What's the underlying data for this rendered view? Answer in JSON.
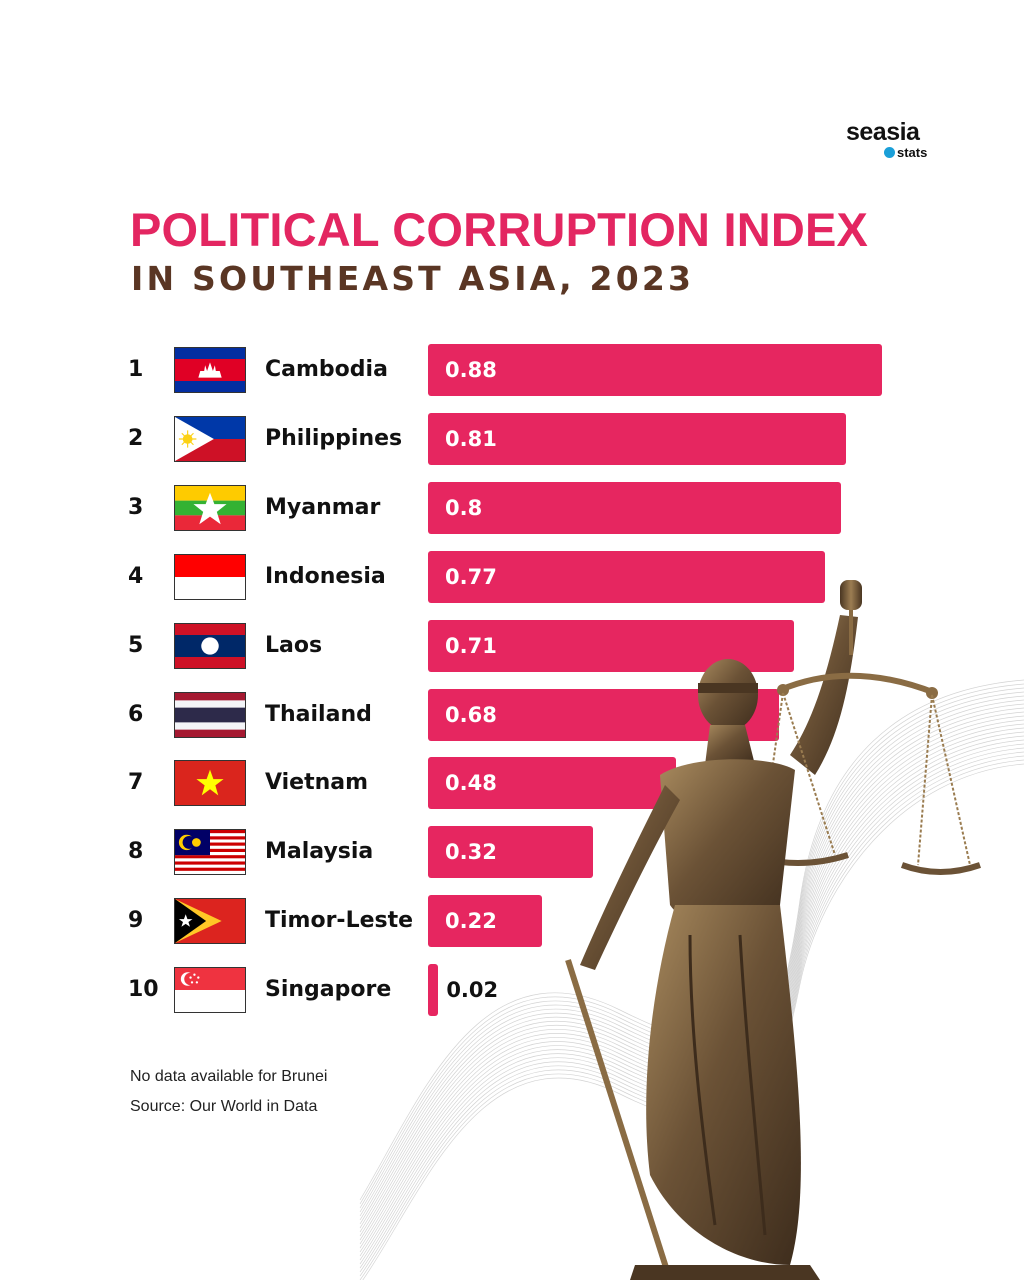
{
  "brand": {
    "name": "seasia",
    "sub": "stats"
  },
  "header": {
    "title": "POLITICAL CORRUPTION INDEX",
    "subtitle": "IN SOUTHEAST ASIA, 2023"
  },
  "chart_data": {
    "type": "bar",
    "orientation": "horizontal",
    "title": "POLITICAL CORRUPTION INDEX",
    "subtitle": "IN SOUTHEAST ASIA, 2023",
    "xlim": [
      0,
      0.88
    ],
    "ranks": [
      "1",
      "2",
      "3",
      "4",
      "5",
      "6",
      "7",
      "8",
      "9",
      "10"
    ],
    "categories": [
      "Cambodia",
      "Philippines",
      "Myanmar",
      "Indonesia",
      "Laos",
      "Thailand",
      "Vietnam",
      "Malaysia",
      "Timor-Leste",
      "Singapore"
    ],
    "values": [
      0.88,
      0.81,
      0.8,
      0.77,
      0.71,
      0.68,
      0.48,
      0.32,
      0.22,
      0.02
    ],
    "labels": [
      "0.88",
      "0.81",
      "0.8",
      "0.77",
      "0.71",
      "0.68",
      "0.48",
      "0.32",
      "0.22",
      "0.02"
    ],
    "flags": [
      "cambodia-flag",
      "philippines-flag",
      "myanmar-flag",
      "indonesia-flag",
      "laos-flag",
      "thailand-flag",
      "vietnam-flag",
      "malaysia-flag",
      "timor-leste-flag",
      "singapore-flag"
    ],
    "bar_color": "#e62660"
  },
  "footer": {
    "note": "No data available for Brunei",
    "source": "Source: Our World in Data"
  },
  "colors": {
    "title": "#e32661",
    "subtitle": "#5a3624",
    "accent": "#e62660"
  },
  "illustration": "lady-justice-statue"
}
